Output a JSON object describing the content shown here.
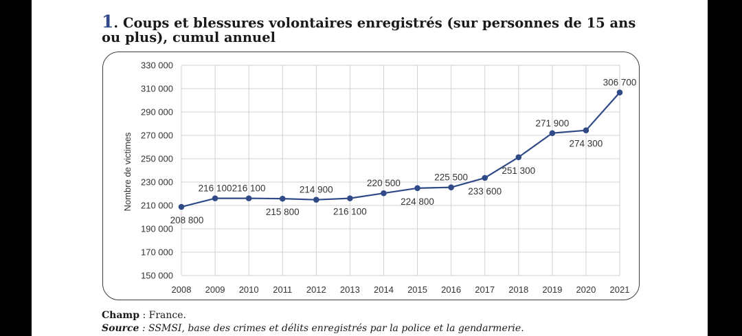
{
  "title": {
    "number": "1",
    "text": ". Coups et blessures volontaires enregistrés (sur personnes de 15 ans ou plus), cumul annuel"
  },
  "colors": {
    "accent": "#2f4a86",
    "line": "#2f4a86",
    "grid": "#d0d0d0"
  },
  "chart_data": {
    "type": "line",
    "title": "",
    "xlabel": "",
    "ylabel": "Nombre de victimes",
    "ylim": [
      150000,
      330000
    ],
    "yticks": [
      150000,
      170000,
      190000,
      210000,
      230000,
      250000,
      270000,
      290000,
      310000,
      330000
    ],
    "ytick_labels": [
      "150 000",
      "170 000",
      "190 000",
      "210 000",
      "230 000",
      "250 000",
      "270 000",
      "290 000",
      "310 000",
      "330 000"
    ],
    "grid": true,
    "legend": "none",
    "x": [
      "2008",
      "2009",
      "2010",
      "2011",
      "2012",
      "2013",
      "2014",
      "2015",
      "2016",
      "2017",
      "2018",
      "2019",
      "2020",
      "2021"
    ],
    "series": [
      {
        "name": "",
        "values": [
          208800,
          216100,
          216100,
          215800,
          214900,
          216100,
          220500,
          224800,
          225500,
          233600,
          251300,
          271900,
          274300,
          306700
        ],
        "labels": [
          "208 800",
          "216 100",
          "216 100",
          "215 800",
          "214 900",
          "216 100",
          "220 500",
          "224 800",
          "225 500",
          "233 600",
          "251 300",
          "271 900",
          "274 300",
          "306 700"
        ],
        "label_positions": [
          "below",
          "above",
          "above",
          "below",
          "above",
          "below",
          "above",
          "below",
          "above",
          "below",
          "below",
          "above",
          "below",
          "above"
        ]
      }
    ]
  },
  "notes": {
    "champ_label": "Champ",
    "champ_text": " : France.",
    "source_label": "Source",
    "source_text": " : SSMSI, base des crimes et délits enregistrés par la police et la gendarmerie."
  }
}
